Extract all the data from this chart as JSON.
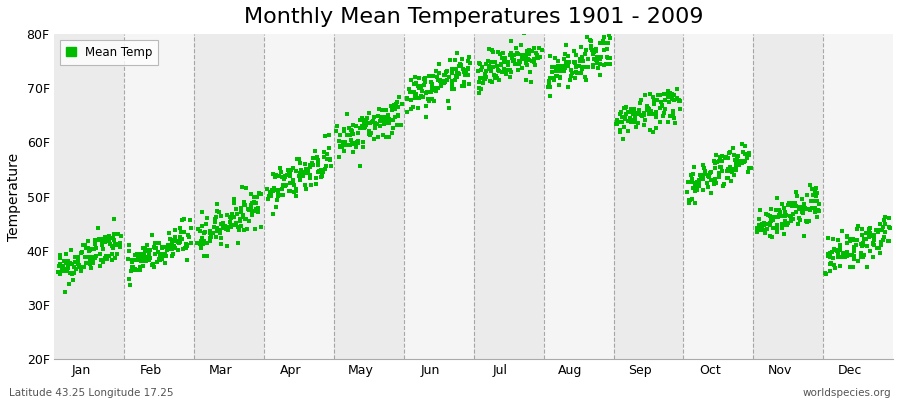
{
  "title": "Monthly Mean Temperatures 1901 - 2009",
  "ylabel": "Temperature",
  "xlabel": "",
  "ylim": [
    20,
    80
  ],
  "yticks": [
    20,
    30,
    40,
    50,
    60,
    70,
    80
  ],
  "ytick_labels": [
    "20F",
    "30F",
    "40F",
    "50F",
    "60F",
    "70F",
    "80F"
  ],
  "months": [
    "Jan",
    "Feb",
    "Mar",
    "Apr",
    "May",
    "Jun",
    "Jul",
    "Aug",
    "Sep",
    "Oct",
    "Nov",
    "Dec"
  ],
  "mean_temps_F_start": [
    36.5,
    37.0,
    42.5,
    51.0,
    60.0,
    68.5,
    72.5,
    72.0,
    63.5,
    52.0,
    44.5,
    38.5
  ],
  "mean_temps_F_end": [
    41.5,
    42.5,
    48.5,
    57.0,
    65.5,
    73.0,
    77.0,
    76.5,
    68.0,
    57.5,
    49.0,
    43.5
  ],
  "noise_std": 1.8,
  "n_years": 109,
  "dot_color": "#00bb00",
  "dot_size": 6,
  "background_color": "#ffffff",
  "plot_bg_even": "#ebebeb",
  "plot_bg_odd": "#f5f5f5",
  "vline_color": "#888888",
  "title_fontsize": 16,
  "axis_label_fontsize": 10,
  "tick_fontsize": 9,
  "legend_label": "Mean Temp",
  "bottom_left_text": "Latitude 43.25 Longitude 17.25",
  "bottom_right_text": "worldspecies.org",
  "seed": 42
}
